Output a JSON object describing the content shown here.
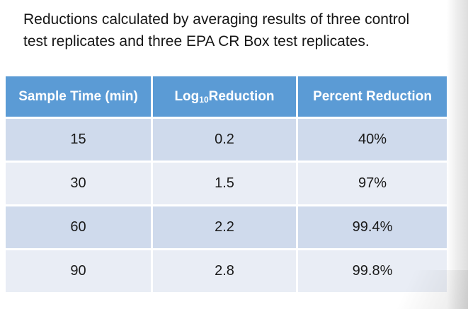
{
  "intro": {
    "text": "Reductions calculated by averaging results of three control test replicates and three EPA CR Box test replicates."
  },
  "table": {
    "headers": [
      {
        "label": "Sample Time (min)"
      },
      {
        "pre": "Log",
        "sub": "10",
        "post": " Reduction"
      },
      {
        "label": "Percent Reduction"
      }
    ],
    "rows": [
      [
        "15",
        "0.2",
        "40%"
      ],
      [
        "30",
        "1.5",
        "97%"
      ],
      [
        "60",
        "2.2",
        "99.4%"
      ],
      [
        "90",
        "2.8",
        "99.8%"
      ]
    ]
  },
  "colors": {
    "header_bg": "#5B9BD5",
    "header_text": "#FFFFFF",
    "band_dark": "#CFDAEC",
    "band_light": "#E9EDF5",
    "body_text": "#1A1A1A"
  }
}
